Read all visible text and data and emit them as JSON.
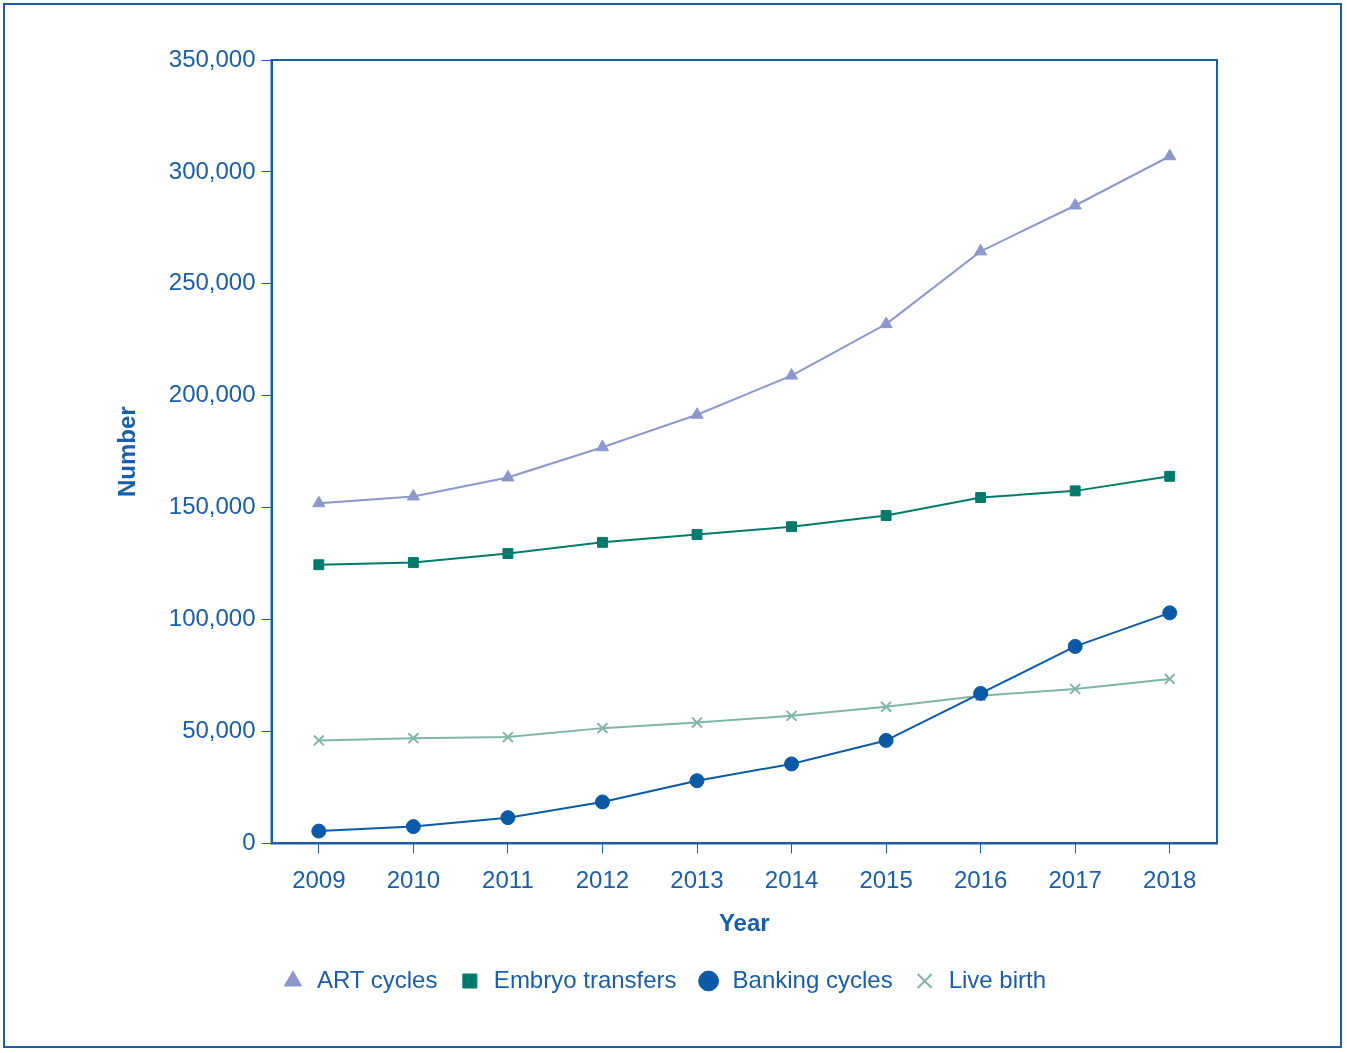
{
  "chart_data": {
    "type": "line",
    "xlabel": "Year",
    "ylabel": "Number",
    "categories": [
      "2009",
      "2010",
      "2011",
      "2012",
      "2013",
      "2014",
      "2015",
      "2016",
      "2017",
      "2018"
    ],
    "series": [
      {
        "name": "ART cycles",
        "color": "#8c97cc",
        "marker": "triangle",
        "values": [
          152000,
          155000,
          163500,
          177000,
          191500,
          209000,
          232000,
          264500,
          285000,
          307000
        ]
      },
      {
        "name": "Embryo transfers",
        "color": "#007a6a",
        "marker": "square",
        "values": [
          124500,
          125500,
          129500,
          134500,
          138000,
          141500,
          146500,
          154500,
          157500,
          164000
        ]
      },
      {
        "name": "Banking cycles",
        "color": "#0a5aa5",
        "marker": "circle",
        "values": [
          5500,
          7500,
          11500,
          18500,
          28000,
          35500,
          46000,
          67000,
          88000,
          103000
        ]
      },
      {
        "name": "Live birth",
        "color": "#7fb5a8",
        "marker": "cross",
        "values": [
          46000,
          47000,
          47500,
          51500,
          54000,
          57000,
          61000,
          66000,
          69000,
          73500
        ]
      }
    ],
    "ylim": [
      0,
      350000
    ],
    "yticks": [
      {
        "value": 0,
        "label": "0"
      },
      {
        "value": 50000,
        "label": "50,000"
      },
      {
        "value": 100000,
        "label": "100,000"
      },
      {
        "value": 150000,
        "label": "150,000"
      },
      {
        "value": 200000,
        "label": "200,000"
      },
      {
        "value": 250000,
        "label": "250,000"
      },
      {
        "value": 300000,
        "label": "300,000"
      },
      {
        "value": 350000,
        "label": "350,000"
      }
    ],
    "grid": false,
    "legend": "bottom"
  }
}
